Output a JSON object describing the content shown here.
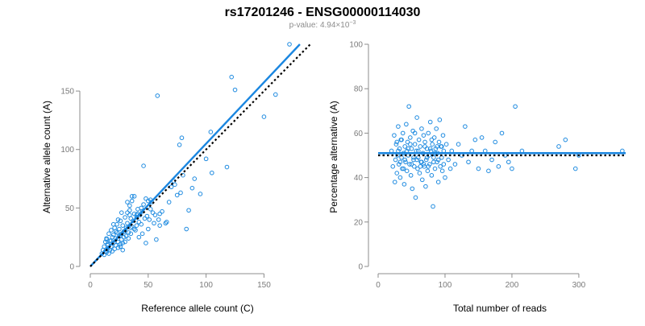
{
  "header": {
    "title": "rs17201246 - ENSG00000114030",
    "pvalue_label": "p-value: 4.94×10",
    "pvalue_exp": "−3"
  },
  "colors": {
    "points": "#1f8be0",
    "fit": "#1a86e0",
    "reference": "#000000"
  },
  "chart_data": [
    {
      "type": "scatter",
      "title": "",
      "xlabel": "Reference allele count (C)",
      "ylabel": "Alternative allele count (A)",
      "xlim": [
        0,
        188
      ],
      "ylim": [
        0,
        190
      ],
      "xticks": [
        0,
        50,
        100,
        150
      ],
      "yticks": [
        0,
        50,
        100,
        150
      ],
      "grid": false,
      "fit_line": {
        "x0": 0,
        "y0": 0,
        "x1": 181,
        "y1": 190
      },
      "reference_line": {
        "x0": 0,
        "y0": 0,
        "x1": 190,
        "y1": 190,
        "style": "dotted"
      },
      "points": [
        [
          10,
          11
        ],
        [
          11,
          14
        ],
        [
          12,
          10
        ],
        [
          12,
          17
        ],
        [
          13,
          21
        ],
        [
          13,
          13
        ],
        [
          14,
          12
        ],
        [
          14,
          24
        ],
        [
          15,
          15
        ],
        [
          15,
          19
        ],
        [
          16,
          11
        ],
        [
          16,
          28
        ],
        [
          17,
          14
        ],
        [
          17,
          22
        ],
        [
          18,
          17
        ],
        [
          18,
          31
        ],
        [
          19,
          13
        ],
        [
          19,
          25
        ],
        [
          20,
          20
        ],
        [
          20,
          27
        ],
        [
          21,
          15
        ],
        [
          21,
          33
        ],
        [
          22,
          18
        ],
        [
          22,
          24
        ],
        [
          23,
          29
        ],
        [
          23,
          36
        ],
        [
          24,
          21
        ],
        [
          24,
          16
        ],
        [
          25,
          26
        ],
        [
          25,
          32
        ],
        [
          26,
          19
        ],
        [
          26,
          39
        ],
        [
          27,
          23
        ],
        [
          27,
          28
        ],
        [
          28,
          35
        ],
        [
          28,
          14
        ],
        [
          29,
          30
        ],
        [
          29,
          25
        ],
        [
          30,
          42
        ],
        [
          30,
          21
        ],
        [
          31,
          26
        ],
        [
          31,
          33
        ],
        [
          32,
          46
        ],
        [
          32,
          37
        ],
        [
          33,
          29
        ],
        [
          33,
          24
        ],
        [
          34,
          48
        ],
        [
          34,
          52
        ],
        [
          35,
          28
        ],
        [
          35,
          41
        ],
        [
          36,
          56
        ],
        [
          36,
          34
        ],
        [
          37,
          39
        ],
        [
          38,
          45
        ],
        [
          38,
          60
        ],
        [
          39,
          31
        ],
        [
          40,
          44
        ],
        [
          40,
          35
        ],
        [
          41,
          49
        ],
        [
          42,
          25
        ],
        [
          42,
          38
        ],
        [
          43,
          44
        ],
        [
          44,
          36
        ],
        [
          45,
          47
        ],
        [
          45,
          28
        ],
        [
          46,
          53
        ],
        [
          47,
          41
        ],
        [
          48,
          58
        ],
        [
          48,
          20
        ],
        [
          49,
          43
        ],
        [
          50,
          32
        ],
        [
          50,
          56
        ],
        [
          51,
          40
        ],
        [
          52,
          49
        ],
        [
          53,
          55
        ],
        [
          54,
          46
        ],
        [
          55,
          37
        ],
        [
          56,
          44
        ],
        [
          57,
          23
        ],
        [
          58,
          146
        ],
        [
          59,
          40
        ],
        [
          60,
          35
        ],
        [
          62,
          47
        ],
        [
          65,
          37
        ],
        [
          68,
          55
        ],
        [
          70,
          68
        ],
        [
          72,
          73
        ],
        [
          75,
          61
        ],
        [
          78,
          63
        ],
        [
          80,
          78
        ],
        [
          83,
          32
        ],
        [
          85,
          48
        ],
        [
          88,
          67
        ],
        [
          90,
          75
        ],
        [
          95,
          62
        ],
        [
          100,
          92
        ],
        [
          104,
          115
        ],
        [
          105,
          80
        ],
        [
          118,
          85
        ],
        [
          122,
          162
        ],
        [
          125,
          151
        ],
        [
          150,
          128
        ],
        [
          160,
          147
        ],
        [
          172,
          190
        ],
        [
          15,
          18
        ],
        [
          18,
          22
        ],
        [
          22,
          30
        ],
        [
          26,
          17
        ],
        [
          30,
          30
        ],
        [
          35,
          33
        ],
        [
          40,
          42
        ],
        [
          44,
          50
        ],
        [
          52,
          57
        ],
        [
          60,
          45
        ],
        [
          66,
          38
        ],
        [
          73,
          70
        ],
        [
          77,
          104
        ],
        [
          79,
          110
        ],
        [
          46,
          86
        ],
        [
          24,
          40
        ],
        [
          28,
          20
        ],
        [
          32,
          55
        ],
        [
          34,
          44
        ],
        [
          38,
          32
        ],
        [
          41,
          45
        ],
        [
          36,
          60
        ],
        [
          27,
          46
        ],
        [
          20,
          36
        ],
        [
          14,
          23
        ]
      ]
    },
    {
      "type": "scatter",
      "title": "",
      "xlabel": "Total number of reads",
      "ylabel": "Percentage alternative (A)",
      "xlim": [
        0,
        370
      ],
      "ylim": [
        0,
        100
      ],
      "xticks": [
        0,
        100,
        200,
        300
      ],
      "yticks": [
        0,
        20,
        40,
        60,
        80,
        100
      ],
      "grid": false,
      "fit_line": {
        "x0": 0,
        "y0": 51,
        "x1": 370,
        "y1": 51
      },
      "reference_line": {
        "x0": 0,
        "y0": 50,
        "x1": 370,
        "y1": 50,
        "style": "dotted"
      },
      "points": [
        [
          20,
          52
        ],
        [
          22,
          45
        ],
        [
          24,
          59
        ],
        [
          25,
          38
        ],
        [
          26,
          48
        ],
        [
          27,
          55
        ],
        [
          28,
          42
        ],
        [
          29,
          50
        ],
        [
          30,
          63
        ],
        [
          31,
          46
        ],
        [
          32,
          53
        ],
        [
          33,
          40
        ],
        [
          34,
          57
        ],
        [
          35,
          49
        ],
        [
          36,
          44
        ],
        [
          37,
          60
        ],
        [
          38,
          51
        ],
        [
          39,
          37
        ],
        [
          40,
          54
        ],
        [
          41,
          47
        ],
        [
          42,
          64
        ],
        [
          43,
          43
        ],
        [
          44,
          56
        ],
        [
          45,
          50
        ],
        [
          46,
          72
        ],
        [
          47,
          46
        ],
        [
          48,
          58
        ],
        [
          49,
          41
        ],
        [
          50,
          53
        ],
        [
          51,
          35
        ],
        [
          52,
          61
        ],
        [
          53,
          48
        ],
        [
          54,
          45
        ],
        [
          55,
          55
        ],
        [
          56,
          31
        ],
        [
          57,
          52
        ],
        [
          58,
          67
        ],
        [
          59,
          44
        ],
        [
          60,
          49
        ],
        [
          61,
          57
        ],
        [
          62,
          42
        ],
        [
          63,
          54
        ],
        [
          64,
          47
        ],
        [
          65,
          62
        ],
        [
          66,
          39
        ],
        [
          67,
          51
        ],
        [
          68,
          59
        ],
        [
          69,
          45
        ],
        [
          70,
          56
        ],
        [
          71,
          36
        ],
        [
          72,
          48
        ],
        [
          73,
          53
        ],
        [
          74,
          43
        ],
        [
          75,
          60
        ],
        [
          76,
          50
        ],
        [
          77,
          46
        ],
        [
          78,
          65
        ],
        [
          79,
          52
        ],
        [
          80,
          41
        ],
        [
          81,
          55
        ],
        [
          82,
          27
        ],
        [
          83,
          49
        ],
        [
          84,
          58
        ],
        [
          85,
          44
        ],
        [
          86,
          53
        ],
        [
          87,
          62
        ],
        [
          88,
          47
        ],
        [
          89,
          51
        ],
        [
          90,
          38
        ],
        [
          91,
          56
        ],
        [
          92,
          66
        ],
        [
          93,
          45
        ],
        [
          94,
          54
        ],
        [
          95,
          49
        ],
        [
          96,
          43
        ],
        [
          97,
          59
        ],
        [
          98,
          52
        ],
        [
          100,
          40
        ],
        [
          102,
          55
        ],
        [
          105,
          48
        ],
        [
          108,
          44
        ],
        [
          110,
          52
        ],
        [
          115,
          46
        ],
        [
          120,
          55
        ],
        [
          125,
          50
        ],
        [
          130,
          63
        ],
        [
          135,
          47
        ],
        [
          140,
          52
        ],
        [
          145,
          57
        ],
        [
          150,
          44
        ],
        [
          155,
          58
        ],
        [
          160,
          52
        ],
        [
          165,
          43
        ],
        [
          170,
          48
        ],
        [
          175,
          56
        ],
        [
          180,
          45
        ],
        [
          185,
          60
        ],
        [
          190,
          50
        ],
        [
          195,
          47
        ],
        [
          200,
          44
        ],
        [
          205,
          72
        ],
        [
          215,
          52
        ],
        [
          270,
          54
        ],
        [
          280,
          57
        ],
        [
          295,
          44
        ],
        [
          300,
          50
        ],
        [
          365,
          52
        ],
        [
          30,
          52
        ],
        [
          35,
          57
        ],
        [
          40,
          48
        ],
        [
          45,
          53
        ],
        [
          50,
          46
        ],
        [
          55,
          60
        ],
        [
          60,
          52
        ],
        [
          65,
          47
        ],
        [
          70,
          54
        ],
        [
          75,
          45
        ],
        [
          80,
          57
        ],
        [
          85,
          51
        ],
        [
          90,
          48
        ],
        [
          95,
          54
        ],
        [
          33,
          47
        ],
        [
          43,
          52
        ],
        [
          53,
          49
        ],
        [
          63,
          45
        ],
        [
          73,
          49
        ],
        [
          83,
          47
        ],
        [
          28,
          56
        ],
        [
          38,
          44
        ],
        [
          48,
          55
        ],
        [
          58,
          48
        ],
        [
          68,
          46
        ],
        [
          78,
          53
        ],
        [
          88,
          54
        ],
        [
          98,
          46
        ]
      ]
    }
  ]
}
